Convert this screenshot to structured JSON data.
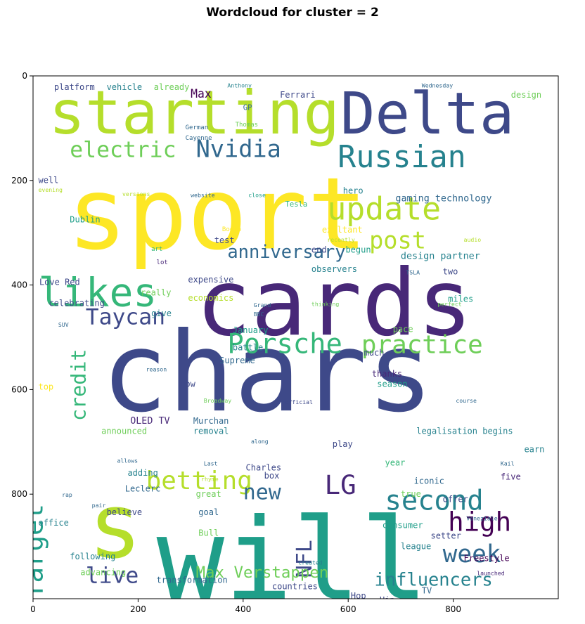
{
  "title": "Wordcloud for cluster = 2",
  "chart_data": {
    "type": "wordcloud",
    "x_range": [
      0,
      1000
    ],
    "y_range": [
      0,
      1000
    ],
    "y_inverted": true,
    "x_ticks": [
      0,
      200,
      400,
      600,
      800
    ],
    "y_ticks": [
      0,
      200,
      400,
      600,
      800
    ],
    "colors": [
      "#fde725",
      "#b5de2b",
      "#6ece58",
      "#35b779",
      "#1f9e89",
      "#26828e",
      "#31688e",
      "#3e4989",
      "#482878",
      "#440154"
    ],
    "words": [
      {
        "text": "chars",
        "x": 130,
        "y": 640,
        "size": 210,
        "color": "#3e4989"
      },
      {
        "text": "sport",
        "x": 65,
        "y": 330,
        "size": 190,
        "color": "#fde725"
      },
      {
        "text": "cards",
        "x": 310,
        "y": 495,
        "size": 175,
        "color": "#482878"
      },
      {
        "text": "will",
        "x": 235,
        "y": 1000,
        "size": 215,
        "color": "#1f9e89"
      },
      {
        "text": "starting",
        "x": 30,
        "y": 110,
        "size": 115,
        "color": "#b5de2b"
      },
      {
        "text": "Delta",
        "x": 585,
        "y": 110,
        "size": 110,
        "color": "#3e4989"
      },
      {
        "text": "s",
        "x": 105,
        "y": 920,
        "size": 170,
        "color": "#b5de2b"
      },
      {
        "text": "likes",
        "x": 10,
        "y": 440,
        "size": 75,
        "color": "#35b779"
      },
      {
        "text": "update",
        "x": 560,
        "y": 275,
        "size": 60,
        "color": "#b5de2b"
      },
      {
        "text": "Russian",
        "x": 580,
        "y": 175,
        "size": 58,
        "color": "#26828e"
      },
      {
        "text": "Porsche",
        "x": 370,
        "y": 530,
        "size": 52,
        "color": "#35b779"
      },
      {
        "text": "practice",
        "x": 625,
        "y": 530,
        "size": 48,
        "color": "#6ece58"
      },
      {
        "text": "second",
        "x": 670,
        "y": 830,
        "size": 52,
        "color": "#26828e"
      },
      {
        "text": "Target",
        "x": 18,
        "y": 1000,
        "size": 50,
        "color": "#1f9e89",
        "rotate": true
      },
      {
        "text": "electric",
        "x": 70,
        "y": 155,
        "size": 42,
        "color": "#6ece58"
      },
      {
        "text": "Nvidia",
        "x": 310,
        "y": 155,
        "size": 45,
        "color": "#31688e"
      },
      {
        "text": "post",
        "x": 640,
        "y": 330,
        "size": 45,
        "color": "#b5de2b"
      },
      {
        "text": "high",
        "x": 790,
        "y": 870,
        "size": 50,
        "color": "#440154"
      },
      {
        "text": "week",
        "x": 780,
        "y": 930,
        "size": 46,
        "color": "#31688e"
      },
      {
        "text": "Taycan",
        "x": 100,
        "y": 475,
        "size": 42,
        "color": "#3e4989"
      },
      {
        "text": "LG",
        "x": 555,
        "y": 800,
        "size": 50,
        "color": "#482878"
      },
      {
        "text": "betting",
        "x": 215,
        "y": 790,
        "size": 48,
        "color": "#b5de2b"
      },
      {
        "text": "anniversary",
        "x": 370,
        "y": 348,
        "size": 34,
        "color": "#31688e"
      },
      {
        "text": "live",
        "x": 100,
        "y": 970,
        "size": 42,
        "color": "#3e4989"
      },
      {
        "text": "credit",
        "x": 100,
        "y": 660,
        "size": 38,
        "color": "#35b779",
        "rotate": true
      },
      {
        "text": "new",
        "x": 400,
        "y": 810,
        "size": 40,
        "color": "#31688e"
      },
      {
        "text": "NFL",
        "x": 530,
        "y": 960,
        "size": 40,
        "color": "#3e4989",
        "rotate": true
      },
      {
        "text": "Max Verstappen",
        "x": 310,
        "y": 960,
        "size": 30,
        "color": "#6ece58"
      },
      {
        "text": "influencers",
        "x": 650,
        "y": 975,
        "size": 34,
        "color": "#26828e"
      },
      {
        "text": "platform",
        "x": 40,
        "y": 27,
        "size": 16,
        "color": "#3e4989"
      },
      {
        "text": "vehicle",
        "x": 140,
        "y": 27,
        "size": 16,
        "color": "#26828e"
      },
      {
        "text": "already",
        "x": 230,
        "y": 27,
        "size": 16,
        "color": "#6ece58"
      },
      {
        "text": "Max",
        "x": 300,
        "y": 42,
        "size": 22,
        "color": "#440154"
      },
      {
        "text": "Ferrari",
        "x": 470,
        "y": 42,
        "size": 16,
        "color": "#3e4989"
      },
      {
        "text": "design",
        "x": 910,
        "y": 42,
        "size": 16,
        "color": "#6ece58"
      },
      {
        "text": "Anthony",
        "x": 370,
        "y": 22,
        "size": 11,
        "color": "#26828e"
      },
      {
        "text": "Wednesday",
        "x": 740,
        "y": 22,
        "size": 11,
        "color": "#31688e"
      },
      {
        "text": "GP",
        "x": 400,
        "y": 65,
        "size": 14,
        "color": "#31688e"
      },
      {
        "text": "German",
        "x": 290,
        "y": 102,
        "size": 12,
        "color": "#31688e"
      },
      {
        "text": "Thomas",
        "x": 385,
        "y": 97,
        "size": 12,
        "color": "#6ece58"
      },
      {
        "text": "Cayenne",
        "x": 290,
        "y": 122,
        "size": 12,
        "color": "#31688e"
      },
      {
        "text": "well",
        "x": 10,
        "y": 205,
        "size": 16,
        "color": "#3e4989"
      },
      {
        "text": "evening",
        "x": 10,
        "y": 222,
        "size": 11,
        "color": "#b5de2b"
      },
      {
        "text": "versions",
        "x": 170,
        "y": 230,
        "size": 11,
        "color": "#b5de2b"
      },
      {
        "text": "website",
        "x": 300,
        "y": 232,
        "size": 11,
        "color": "#31688e"
      },
      {
        "text": "close",
        "x": 410,
        "y": 232,
        "size": 11,
        "color": "#1f9e89"
      },
      {
        "text": "hero",
        "x": 590,
        "y": 225,
        "size": 16,
        "color": "#26828e"
      },
      {
        "text": "gaming technology",
        "x": 690,
        "y": 240,
        "size": 18,
        "color": "#31688e"
      },
      {
        "text": "Dublin",
        "x": 70,
        "y": 280,
        "size": 16,
        "color": "#1f9e89"
      },
      {
        "text": "Booth",
        "x": 360,
        "y": 297,
        "size": 12,
        "color": "#fde725"
      },
      {
        "text": "test",
        "x": 345,
        "y": 320,
        "size": 16,
        "color": "#3e4989"
      },
      {
        "text": "Tesla",
        "x": 480,
        "y": 250,
        "size": 14,
        "color": "#35b779"
      },
      {
        "text": "exultant",
        "x": 550,
        "y": 300,
        "size": 16,
        "color": "#fde725"
      },
      {
        "text": "recently",
        "x": 560,
        "y": 317,
        "size": 11,
        "color": "#b5de2b"
      },
      {
        "text": "audio",
        "x": 820,
        "y": 317,
        "size": 11,
        "color": "#b5de2b"
      },
      {
        "text": "end",
        "x": 530,
        "y": 338,
        "size": 16,
        "color": "#3e4989"
      },
      {
        "text": "begun",
        "x": 595,
        "y": 338,
        "size": 16,
        "color": "#1f9e89"
      },
      {
        "text": "design partner",
        "x": 700,
        "y": 350,
        "size": 18,
        "color": "#26828e"
      },
      {
        "text": "TSLA",
        "x": 710,
        "y": 380,
        "size": 11,
        "color": "#31688e"
      },
      {
        "text": "observers",
        "x": 530,
        "y": 375,
        "size": 16,
        "color": "#26828e"
      },
      {
        "text": "two",
        "x": 780,
        "y": 380,
        "size": 16,
        "color": "#3e4989"
      },
      {
        "text": "lot",
        "x": 235,
        "y": 360,
        "size": 12,
        "color": "#482878"
      },
      {
        "text": "art",
        "x": 225,
        "y": 335,
        "size": 12,
        "color": "#35b779"
      },
      {
        "text": "expensive",
        "x": 295,
        "y": 395,
        "size": 16,
        "color": "#3e4989"
      },
      {
        "text": "Love Red",
        "x": 12,
        "y": 400,
        "size": 16,
        "color": "#3e4989"
      },
      {
        "text": "really",
        "x": 205,
        "y": 420,
        "size": 16,
        "color": "#6ece58"
      },
      {
        "text": "economics",
        "x": 295,
        "y": 430,
        "size": 16,
        "color": "#b5de2b"
      },
      {
        "text": "celebrating",
        "x": 30,
        "y": 440,
        "size": 16,
        "color": "#3e4989"
      },
      {
        "text": "miles",
        "x": 790,
        "y": 432,
        "size": 16,
        "color": "#1f9e89"
      },
      {
        "text": "give",
        "x": 225,
        "y": 460,
        "size": 16,
        "color": "#26828e"
      },
      {
        "text": "Grand",
        "x": 420,
        "y": 442,
        "size": 11,
        "color": "#31688e"
      },
      {
        "text": "BBC",
        "x": 420,
        "y": 460,
        "size": 11,
        "color": "#31688e"
      },
      {
        "text": "thinking",
        "x": 530,
        "y": 440,
        "size": 11,
        "color": "#6ece58"
      },
      {
        "text": "perfect",
        "x": 770,
        "y": 440,
        "size": 11,
        "color": "#6ece58"
      },
      {
        "text": "January",
        "x": 380,
        "y": 492,
        "size": 16,
        "color": "#1f9e89"
      },
      {
        "text": "battle",
        "x": 380,
        "y": 525,
        "size": 16,
        "color": "#26828e"
      },
      {
        "text": "Supreme",
        "x": 355,
        "y": 550,
        "size": 16,
        "color": "#31688e"
      },
      {
        "text": "pace",
        "x": 685,
        "y": 490,
        "size": 16,
        "color": "#6ece58"
      },
      {
        "text": "much",
        "x": 630,
        "y": 535,
        "size": 16,
        "color": "#3e4989"
      },
      {
        "text": "thanks",
        "x": 645,
        "y": 575,
        "size": 16,
        "color": "#482878"
      },
      {
        "text": "season",
        "x": 655,
        "y": 595,
        "size": 16,
        "color": "#1f9e89"
      },
      {
        "text": "SUV",
        "x": 48,
        "y": 480,
        "size": 11,
        "color": "#31688e"
      },
      {
        "text": "reason",
        "x": 215,
        "y": 565,
        "size": 11,
        "color": "#31688e"
      },
      {
        "text": "now",
        "x": 280,
        "y": 595,
        "size": 16,
        "color": "#3e4989"
      },
      {
        "text": "top",
        "x": 10,
        "y": 600,
        "size": 16,
        "color": "#fde725"
      },
      {
        "text": "Broadway",
        "x": 325,
        "y": 625,
        "size": 11,
        "color": "#6ece58"
      },
      {
        "text": "official",
        "x": 480,
        "y": 628,
        "size": 11,
        "color": "#3e4989"
      },
      {
        "text": "course",
        "x": 805,
        "y": 625,
        "size": 11,
        "color": "#31688e"
      },
      {
        "text": "OLED TV",
        "x": 185,
        "y": 665,
        "size": 18,
        "color": "#482878"
      },
      {
        "text": "Murchan",
        "x": 305,
        "y": 665,
        "size": 16,
        "color": "#31688e"
      },
      {
        "text": "removal",
        "x": 305,
        "y": 685,
        "size": 16,
        "color": "#26828e"
      },
      {
        "text": "announced",
        "x": 130,
        "y": 685,
        "size": 16,
        "color": "#6ece58"
      },
      {
        "text": "legalisation begins",
        "x": 730,
        "y": 685,
        "size": 16,
        "color": "#26828e"
      },
      {
        "text": "along",
        "x": 415,
        "y": 703,
        "size": 11,
        "color": "#31688e"
      },
      {
        "text": "play",
        "x": 570,
        "y": 710,
        "size": 16,
        "color": "#3e4989"
      },
      {
        "text": "allows",
        "x": 160,
        "y": 740,
        "size": 11,
        "color": "#31688e"
      },
      {
        "text": "adding",
        "x": 180,
        "y": 765,
        "size": 16,
        "color": "#26828e"
      },
      {
        "text": "Last",
        "x": 325,
        "y": 745,
        "size": 11,
        "color": "#31688e"
      },
      {
        "text": "Charles",
        "x": 405,
        "y": 755,
        "size": 16,
        "color": "#3e4989"
      },
      {
        "text": "box",
        "x": 440,
        "y": 770,
        "size": 16,
        "color": "#3e4989"
      },
      {
        "text": "year",
        "x": 670,
        "y": 745,
        "size": 16,
        "color": "#35b779"
      },
      {
        "text": "earn",
        "x": 935,
        "y": 720,
        "size": 16,
        "color": "#26828e"
      },
      {
        "text": "Kail",
        "x": 890,
        "y": 745,
        "size": 11,
        "color": "#31688e"
      },
      {
        "text": "five",
        "x": 890,
        "y": 772,
        "size": 16,
        "color": "#482878"
      },
      {
        "text": "Leclerc",
        "x": 175,
        "y": 795,
        "size": 16,
        "color": "#31688e"
      },
      {
        "text": "rhyme",
        "x": 320,
        "y": 775,
        "size": 11,
        "color": "#b5de2b"
      },
      {
        "text": "iconic",
        "x": 725,
        "y": 780,
        "size": 16,
        "color": "#31688e"
      },
      {
        "text": "true",
        "x": 700,
        "y": 805,
        "size": 16,
        "color": "#6ece58"
      },
      {
        "text": "offer",
        "x": 780,
        "y": 815,
        "size": 16,
        "color": "#3e4989"
      },
      {
        "text": "great",
        "x": 310,
        "y": 805,
        "size": 16,
        "color": "#6ece58"
      },
      {
        "text": "rap",
        "x": 55,
        "y": 805,
        "size": 11,
        "color": "#31688e"
      },
      {
        "text": "pair",
        "x": 112,
        "y": 825,
        "size": 11,
        "color": "#31688e"
      },
      {
        "text": "believe",
        "x": 140,
        "y": 840,
        "size": 16,
        "color": "#3e4989"
      },
      {
        "text": "goal",
        "x": 315,
        "y": 840,
        "size": 16,
        "color": "#31688e"
      },
      {
        "text": "office",
        "x": 10,
        "y": 860,
        "size": 16,
        "color": "#26828e"
      },
      {
        "text": "consumer",
        "x": 665,
        "y": 865,
        "size": 16,
        "color": "#1f9e89"
      },
      {
        "text": "setter",
        "x": 757,
        "y": 885,
        "size": 16,
        "color": "#3e4989"
      },
      {
        "text": "Bull",
        "x": 315,
        "y": 880,
        "size": 16,
        "color": "#6ece58"
      },
      {
        "text": "league",
        "x": 700,
        "y": 905,
        "size": 16,
        "color": "#26828e"
      },
      {
        "text": "Veneziale",
        "x": 825,
        "y": 850,
        "size": 11,
        "color": "#31688e"
      },
      {
        "text": "created",
        "x": 505,
        "y": 935,
        "size": 11,
        "color": "#26828e"
      },
      {
        "text": "following",
        "x": 70,
        "y": 925,
        "size": 16,
        "color": "#26828e"
      },
      {
        "text": "advancing",
        "x": 90,
        "y": 955,
        "size": 16,
        "color": "#6ece58"
      },
      {
        "text": "Freestyle",
        "x": 820,
        "y": 928,
        "size": 16,
        "color": "#440154"
      },
      {
        "text": "launched",
        "x": 845,
        "y": 955,
        "size": 11,
        "color": "#482878"
      },
      {
        "text": "transformation",
        "x": 235,
        "y": 970,
        "size": 16,
        "color": "#31688e"
      },
      {
        "text": "countries",
        "x": 455,
        "y": 982,
        "size": 16,
        "color": "#3e4989"
      },
      {
        "text": "Hop",
        "x": 605,
        "y": 1000,
        "size": 16,
        "color": "#3e4989"
      },
      {
        "text": "Hip",
        "x": 660,
        "y": 1008,
        "size": 16,
        "color": "#3e4989"
      },
      {
        "text": "TV",
        "x": 740,
        "y": 990,
        "size": 16,
        "color": "#31688e"
      }
    ]
  }
}
